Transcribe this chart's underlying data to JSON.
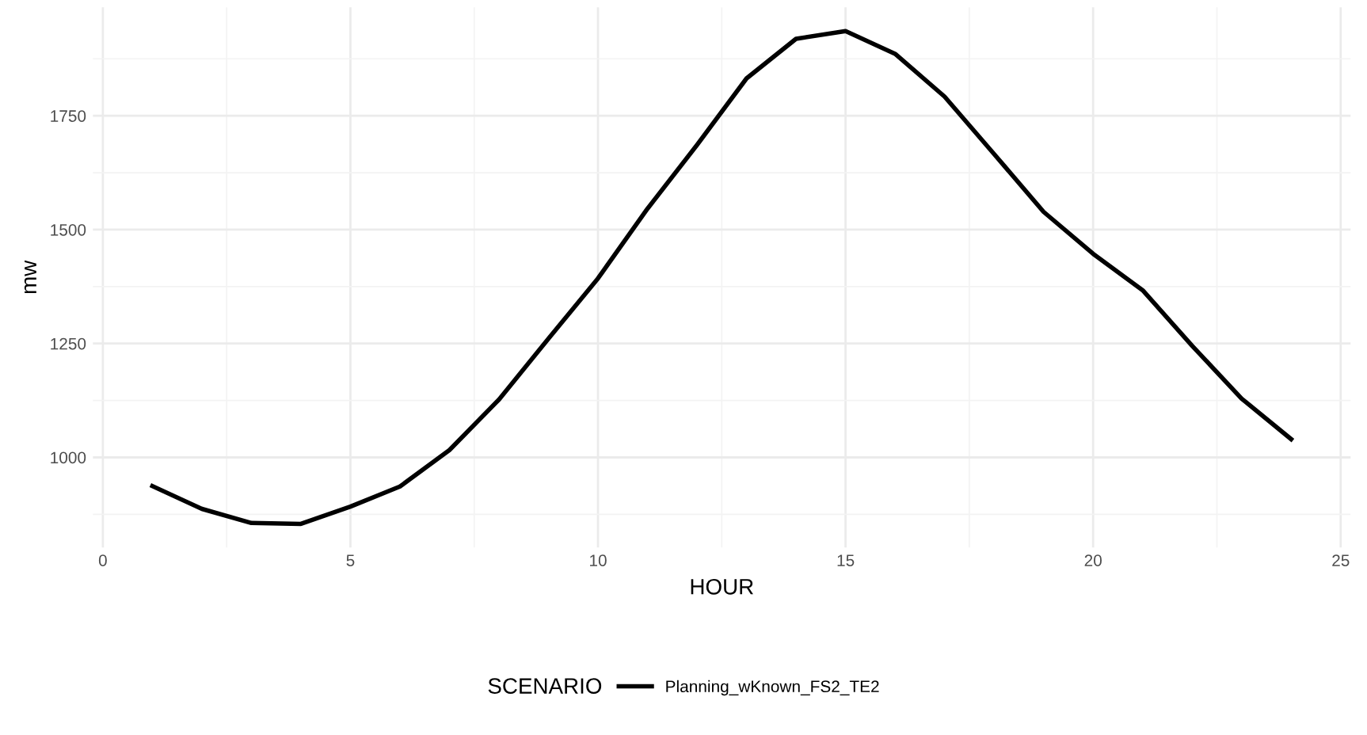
{
  "chart_data": {
    "type": "line",
    "xlabel": "HOUR",
    "ylabel": "mw",
    "legend_title": "SCENARIO",
    "x": [
      1,
      2,
      3,
      4,
      5,
      6,
      7,
      8,
      9,
      10,
      11,
      12,
      13,
      14,
      15,
      16,
      17,
      18,
      19,
      20,
      21,
      22,
      23,
      24
    ],
    "series": [
      {
        "name": "Planning_wKnown_FS2_TE2",
        "color": "#000000",
        "values": [
          937,
          887,
          856,
          854,
          892,
          936,
          1016,
          1127,
          1261,
          1393,
          1546,
          1686,
          1832,
          1919,
          1936,
          1886,
          1792,
          1666,
          1539,
          1447,
          1367,
          1245,
          1129,
          1040
        ]
      }
    ],
    "xlim": [
      -0.2,
      25.2
    ],
    "xticks": [
      0,
      5,
      10,
      15,
      20,
      25
    ],
    "ylim": [
      802,
      1988
    ],
    "yticks": [
      1000,
      1250,
      1500,
      1750
    ],
    "grid": true,
    "legend": "bottom",
    "marker": "none",
    "line_style": "solid"
  }
}
